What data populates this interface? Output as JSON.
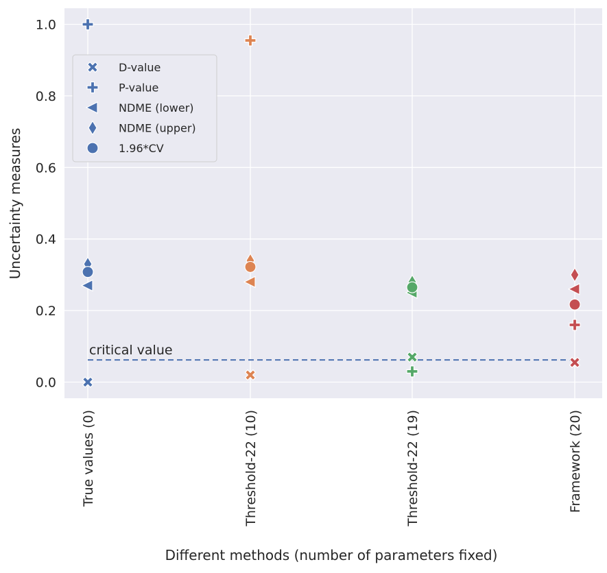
{
  "chart_data": {
    "type": "scatter",
    "title": "",
    "xlabel": "Different methods (number of parameters fixed)",
    "ylabel": "Uncertainty measures",
    "categories": [
      "True values (0)",
      "Threshold-22 (10)",
      "Threshold-22 (19)",
      "Framework (20)"
    ],
    "category_colors": [
      "#4c72b0",
      "#dd8452",
      "#55a868",
      "#c44e52"
    ],
    "ylim": [
      -0.045,
      1.045
    ],
    "yticks": [
      0.0,
      0.2,
      0.4,
      0.6,
      0.8,
      1.0
    ],
    "ytick_labels": [
      "0.0",
      "0.2",
      "0.4",
      "0.6",
      "0.8",
      "1.0"
    ],
    "grid": true,
    "series": [
      {
        "name": "D-value",
        "marker": "x",
        "values": [
          0.0,
          0.02,
          0.07,
          0.055
        ]
      },
      {
        "name": "P-value",
        "marker": "plus",
        "values": [
          1.0,
          0.955,
          0.03,
          0.16
        ]
      },
      {
        "name": "NDME (lower)",
        "marker": "triangle-left",
        "values": [
          0.27,
          0.28,
          0.25,
          0.26
        ]
      },
      {
        "name": "NDME (upper)",
        "marker": "thin-diamond",
        "values": [
          0.33,
          0.34,
          0.28,
          0.3
        ]
      },
      {
        "name": "1.96*CV",
        "marker": "circle",
        "values": [
          0.308,
          0.322,
          0.265,
          0.217
        ]
      }
    ],
    "reference_line": {
      "label": "critical value",
      "value": 0.062,
      "color": "#4c72b0",
      "style": "dashed"
    },
    "legend": {
      "position": "upper-left",
      "marker_color": "#4c72b0"
    }
  }
}
